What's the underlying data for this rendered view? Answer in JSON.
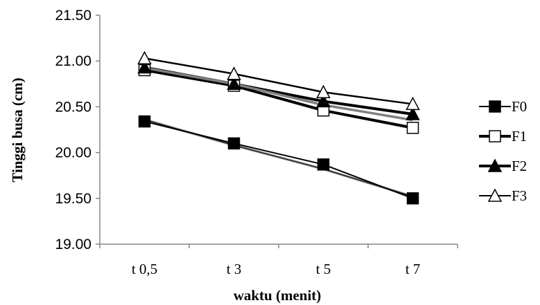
{
  "chart_data": {
    "type": "line",
    "title": "",
    "xlabel": "waktu (menit)",
    "ylabel": "Tinggi busa (cm)",
    "categories": [
      "t 0,5",
      "t 3",
      "t 5",
      "t 7"
    ],
    "ylim": [
      19.0,
      21.5
    ],
    "yticks": [
      "19.00",
      "19.50",
      "20.00",
      "20.50",
      "21.00",
      "21.50"
    ],
    "grid": false,
    "legend_position": "right",
    "series": [
      {
        "name": "F0",
        "values": [
          20.34,
          20.1,
          19.87,
          19.5
        ],
        "marker": "filled-square",
        "color": "#000000",
        "trend": [
          20.36,
          20.08,
          19.82,
          19.52
        ]
      },
      {
        "name": "F1",
        "values": [
          20.9,
          20.73,
          20.46,
          20.27
        ],
        "marker": "open-square",
        "color": "#000000",
        "trend": null
      },
      {
        "name": "F2",
        "values": [
          20.93,
          20.75,
          20.56,
          20.42
        ],
        "marker": "filled-triangle",
        "color": "#000000",
        "trend": null
      },
      {
        "name": "F3",
        "values": [
          21.03,
          20.86,
          20.66,
          20.53
        ],
        "marker": "open-triangle",
        "color": "#000000",
        "trend": null
      }
    ]
  }
}
